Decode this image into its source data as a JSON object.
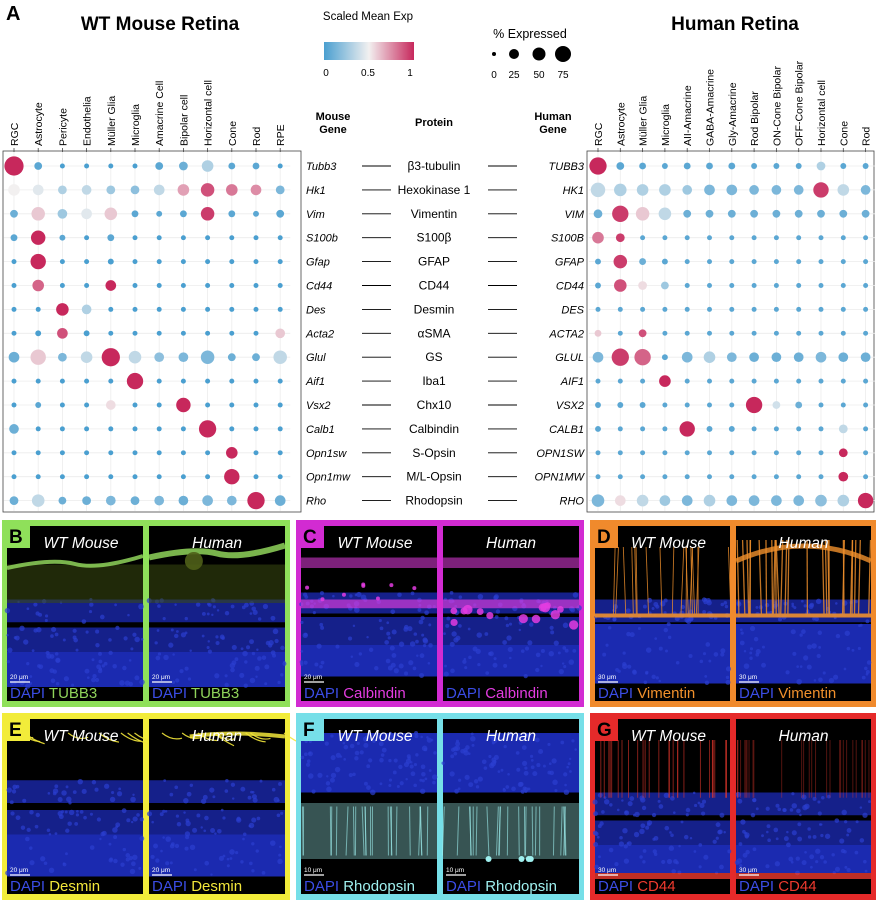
{
  "panel_a": {
    "label": "A",
    "mouse_title": "WT Mouse Retina",
    "human_title": "Human Retina",
    "color_legend": {
      "title": "Scaled Mean Exp",
      "ticks": [
        "0",
        "0.5",
        "1"
      ],
      "low_color": "#4a9fd0",
      "mid_color": "#f2f0f0",
      "high_color": "#c7285c"
    },
    "size_legend": {
      "title": "% Expressed",
      "ticks": [
        "0",
        "25",
        "50",
        "75"
      ]
    },
    "col_headers": {
      "mouse_gene": [
        "Mouse",
        "Gene"
      ],
      "protein": "Protein",
      "human_gene": [
        "Human",
        "Gene"
      ]
    }
  },
  "chart_data": [
    {
      "type": "dotplot",
      "title": "WT Mouse Retina",
      "value_scale": "Scaled Mean Exp (0-1)",
      "size_scale": "% Expressed",
      "categories": [
        "RGC",
        "Astrocyte",
        "Pericyte",
        "Endothelia",
        "Müller Glia",
        "Microglia",
        "Amacrine Cell",
        "Bipolar cell",
        "Horizontal cell",
        "Cone",
        "Rod",
        "RPE"
      ],
      "genes": [
        "Tubb3",
        "Hk1",
        "Vim",
        "S100b",
        "Gfap",
        "Cd44",
        "Des",
        "Acta2",
        "Glul",
        "Aif1",
        "Vsx2",
        "Calb1",
        "Opn1sw",
        "Opn1mw",
        "Rho"
      ],
      "proteins": [
        "β3-tubulin",
        "Hexokinase 1",
        "Vimentin",
        "S100β",
        "GFAP",
        "CD44",
        "Desmin",
        "αSMA",
        "GS",
        "Iba1",
        "Chx10",
        "Calbindin",
        "S-Opsin",
        "M/L-Opsin",
        "Rhodopsin"
      ],
      "exp": [
        [
          1,
          0.05,
          0,
          0,
          0,
          0,
          0.05,
          0.1,
          0.3,
          0.05,
          0.05,
          0
        ],
        [
          0.5,
          0.45,
          0.3,
          0.35,
          0.25,
          0.2,
          0.35,
          0.7,
          0.9,
          0.8,
          0.75,
          0.15
        ],
        [
          0.1,
          0.6,
          0.25,
          0.45,
          0.6,
          0.05,
          0.05,
          0.05,
          0.95,
          0.05,
          0.05,
          0.05
        ],
        [
          0.05,
          1,
          0.05,
          0,
          0.05,
          0,
          0,
          0,
          0,
          0,
          0,
          0
        ],
        [
          0,
          1,
          0,
          0,
          0,
          0,
          0,
          0,
          0,
          0,
          0,
          0
        ],
        [
          0,
          0.85,
          0,
          0,
          1,
          0,
          0,
          0,
          0,
          0,
          0,
          0
        ],
        [
          0,
          0,
          1,
          0.3,
          0,
          0,
          0,
          0,
          0,
          0,
          0,
          0
        ],
        [
          0,
          0,
          0.9,
          0,
          0,
          0,
          0,
          0,
          0,
          0,
          0,
          0.6
        ],
        [
          0.1,
          0.6,
          0.15,
          0.35,
          1,
          0.35,
          0.2,
          0.15,
          0.15,
          0.1,
          0.1,
          0.35
        ],
        [
          0,
          0,
          0,
          0,
          0,
          1,
          0,
          0,
          0,
          0,
          0,
          0
        ],
        [
          0,
          0.05,
          0,
          0,
          0.55,
          0,
          0,
          1,
          0,
          0,
          0,
          0
        ],
        [
          0.1,
          0,
          0,
          0,
          0,
          0,
          0,
          0,
          1,
          0,
          0,
          0
        ],
        [
          0,
          0,
          0,
          0,
          0,
          0,
          0,
          0,
          0,
          1,
          0,
          0
        ],
        [
          0,
          0,
          0,
          0,
          0,
          0,
          0,
          0,
          0,
          1,
          0,
          0
        ],
        [
          0.1,
          0.35,
          0.1,
          0.1,
          0.15,
          0.1,
          0.15,
          0.1,
          0.15,
          0.15,
          1,
          0.1
        ]
      ],
      "pct": [
        [
          80,
          20,
          5,
          5,
          5,
          5,
          20,
          25,
          40,
          15,
          15,
          5
        ],
        [
          40,
          35,
          25,
          30,
          25,
          25,
          35,
          40,
          50,
          40,
          35,
          25
        ],
        [
          20,
          50,
          30,
          35,
          45,
          15,
          10,
          15,
          50,
          15,
          10,
          20
        ],
        [
          15,
          55,
          10,
          5,
          15,
          5,
          5,
          5,
          5,
          5,
          5,
          5
        ],
        [
          5,
          60,
          5,
          5,
          10,
          5,
          5,
          5,
          5,
          5,
          5,
          5
        ],
        [
          5,
          40,
          5,
          5,
          35,
          5,
          5,
          5,
          5,
          5,
          5,
          5
        ],
        [
          5,
          5,
          45,
          30,
          5,
          5,
          5,
          5,
          5,
          5,
          5,
          5
        ],
        [
          5,
          10,
          35,
          10,
          5,
          5,
          5,
          5,
          5,
          5,
          5,
          30
        ],
        [
          35,
          60,
          25,
          40,
          75,
          45,
          30,
          30,
          50,
          20,
          20,
          50
        ],
        [
          5,
          5,
          5,
          5,
          5,
          65,
          5,
          5,
          5,
          5,
          5,
          5
        ],
        [
          5,
          10,
          5,
          5,
          30,
          5,
          5,
          55,
          5,
          5,
          5,
          5
        ],
        [
          30,
          5,
          5,
          5,
          5,
          5,
          5,
          5,
          70,
          5,
          5,
          5
        ],
        [
          5,
          5,
          5,
          5,
          5,
          5,
          5,
          5,
          5,
          40,
          5,
          5
        ],
        [
          5,
          5,
          5,
          5,
          5,
          5,
          5,
          5,
          5,
          60,
          5,
          5
        ],
        [
          25,
          45,
          20,
          25,
          30,
          25,
          30,
          30,
          35,
          30,
          70,
          35
        ]
      ]
    },
    {
      "type": "dotplot",
      "title": "Human Retina",
      "value_scale": "Scaled Mean Exp (0-1)",
      "size_scale": "% Expressed",
      "categories": [
        "RGC",
        "Astrocyte",
        "Müller Glia",
        "Microglia",
        "AII-Amacrine",
        "GABA-Amacrine",
        "Gly-Amacrine",
        "Rod Bipolar",
        "ON-Cone Bipolar",
        "OFF-Cone Bipolar",
        "Horizontal cell",
        "Cone",
        "Rod"
      ],
      "genes": [
        "TUBB3",
        "HK1",
        "VIM",
        "S100B",
        "GFAP",
        "CD44",
        "DES",
        "ACTA2",
        "GLUL",
        "AIF1",
        "VSX2",
        "CALB1",
        "OPN1SW",
        "OPN1MW",
        "RHO"
      ],
      "exp": [
        [
          1,
          0.05,
          0.05,
          0.05,
          0.05,
          0.05,
          0.05,
          0.05,
          0.05,
          0.05,
          0.3,
          0.05,
          0.05
        ],
        [
          0.35,
          0.3,
          0.3,
          0.3,
          0.25,
          0.15,
          0.15,
          0.15,
          0.15,
          0.15,
          0.95,
          0.35,
          0.15
        ],
        [
          0.1,
          0.95,
          0.6,
          0.35,
          0.1,
          0.1,
          0.1,
          0.1,
          0.1,
          0.1,
          0.1,
          0.1,
          0.1
        ],
        [
          0.8,
          0.95,
          0.05,
          0.05,
          0.05,
          0.05,
          0.05,
          0.05,
          0.05,
          0.05,
          0.05,
          0.05,
          0.05
        ],
        [
          0.05,
          0.95,
          0.1,
          0.05,
          0.05,
          0.05,
          0.05,
          0.05,
          0.05,
          0.05,
          0.05,
          0.05,
          0.05
        ],
        [
          0.05,
          0.9,
          0.55,
          0.25,
          0.05,
          0.05,
          0.05,
          0.05,
          0.05,
          0.05,
          0.05,
          0.05,
          0.05
        ],
        [
          0.05,
          0.05,
          0.05,
          0.05,
          0.05,
          0.05,
          0.05,
          0.05,
          0.05,
          0.05,
          0.05,
          0.05,
          0.05
        ],
        [
          0.6,
          0.05,
          0.9,
          0.05,
          0.05,
          0.05,
          0.05,
          0.05,
          0.05,
          0.05,
          0.05,
          0.05,
          0.05
        ],
        [
          0.15,
          0.95,
          0.85,
          0.05,
          0.15,
          0.3,
          0.15,
          0.1,
          0.1,
          0.1,
          0.15,
          0.1,
          0.1
        ],
        [
          0.05,
          0.05,
          0.05,
          1,
          0.05,
          0.05,
          0.05,
          0.05,
          0.05,
          0.05,
          0.05,
          0.05,
          0.05
        ],
        [
          0.05,
          0.05,
          0.05,
          0.05,
          0.05,
          0.05,
          0.05,
          1,
          0.4,
          0.1,
          0.05,
          0.05,
          0.05
        ],
        [
          0.05,
          0.05,
          0.05,
          0.05,
          1,
          0.05,
          0.05,
          0.05,
          0.05,
          0.05,
          0.05,
          0.35,
          0.05
        ],
        [
          0.05,
          0.05,
          0.05,
          0.05,
          0.05,
          0.05,
          0.05,
          0.05,
          0.05,
          0.05,
          0.05,
          1,
          0.05
        ],
        [
          0.05,
          0.05,
          0.05,
          0.05,
          0.05,
          0.05,
          0.05,
          0.05,
          0.05,
          0.05,
          0.05,
          1,
          0.05
        ],
        [
          0.15,
          0.55,
          0.35,
          0.25,
          0.15,
          0.3,
          0.15,
          0.15,
          0.15,
          0.15,
          0.2,
          0.3,
          1
        ]
      ],
      "pct": [
        [
          70,
          20,
          15,
          10,
          15,
          15,
          15,
          10,
          10,
          10,
          25,
          10,
          10
        ],
        [
          55,
          45,
          40,
          40,
          30,
          35,
          35,
          30,
          30,
          30,
          60,
          40,
          30
        ],
        [
          25,
          65,
          50,
          45,
          20,
          20,
          20,
          20,
          20,
          20,
          20,
          20,
          20
        ],
        [
          40,
          25,
          5,
          5,
          5,
          5,
          5,
          5,
          5,
          5,
          5,
          5,
          5
        ],
        [
          10,
          50,
          15,
          10,
          5,
          5,
          5,
          5,
          5,
          5,
          5,
          5,
          5
        ],
        [
          10,
          45,
          25,
          20,
          5,
          5,
          5,
          5,
          5,
          5,
          5,
          5,
          5
        ],
        [
          5,
          5,
          5,
          5,
          5,
          5,
          5,
          5,
          5,
          5,
          5,
          5,
          5
        ],
        [
          15,
          5,
          20,
          5,
          5,
          5,
          5,
          5,
          5,
          5,
          5,
          5,
          5
        ],
        [
          35,
          70,
          65,
          10,
          35,
          40,
          30,
          30,
          30,
          30,
          35,
          30,
          30
        ],
        [
          5,
          5,
          5,
          40,
          5,
          5,
          5,
          5,
          5,
          5,
          5,
          5,
          5
        ],
        [
          10,
          10,
          10,
          5,
          5,
          5,
          5,
          65,
          20,
          15,
          5,
          5,
          5
        ],
        [
          10,
          5,
          5,
          5,
          60,
          10,
          10,
          5,
          5,
          5,
          5,
          25,
          5
        ],
        [
          5,
          5,
          5,
          5,
          5,
          5,
          5,
          5,
          5,
          5,
          5,
          25,
          5
        ],
        [
          5,
          5,
          5,
          5,
          5,
          5,
          5,
          5,
          5,
          5,
          5,
          30,
          5
        ],
        [
          45,
          35,
          40,
          35,
          35,
          40,
          35,
          35,
          35,
          35,
          40,
          40,
          60
        ]
      ]
    }
  ],
  "micro_panels": [
    {
      "label": "B",
      "border": "#8fe05a",
      "left_title": "WT Mouse",
      "right_title": "Human",
      "stain": "TUBB3",
      "stain_color": "#8fd35a",
      "scale_left": "20 μm",
      "scale_right": "20 μm",
      "style": "tubb3"
    },
    {
      "label": "C",
      "border": "#d22bd2",
      "left_title": "WT Mouse",
      "right_title": "Human",
      "stain": "Calbindin",
      "stain_color": "#e33ce0",
      "scale_left": "20 μm",
      "scale_right": "",
      "style": "calbindin"
    },
    {
      "label": "D",
      "border": "#f08a2c",
      "left_title": "WT Mouse",
      "right_title": "Human",
      "stain": "Vimentin",
      "stain_color": "#f0902c",
      "scale_left": "30 μm",
      "scale_right": "30 μm",
      "style": "vimentin"
    },
    {
      "label": "E",
      "border": "#f2ec3a",
      "left_title": "WT Mouse",
      "right_title": "Human",
      "stain": "Desmin",
      "stain_color": "#f2e63a",
      "scale_left": "20 μm",
      "scale_right": "20 μm",
      "style": "desmin"
    },
    {
      "label": "F",
      "border": "#76dfe8",
      "left_title": "WT Mouse",
      "right_title": "Human",
      "stain": "Rhodopsin",
      "stain_color": "#9ff0ef",
      "scale_left": "10 μm",
      "scale_right": "10 μm",
      "style": "rhodopsin"
    },
    {
      "label": "G",
      "border": "#e52a2a",
      "left_title": "WT Mouse",
      "right_title": "Human",
      "stain": "CD44",
      "stain_color": "#ee3a2e",
      "scale_left": "30 μm",
      "scale_right": "30 μm",
      "style": "cd44"
    }
  ],
  "dapi_label": "DAPI",
  "dapi_color": "#3b4de6"
}
